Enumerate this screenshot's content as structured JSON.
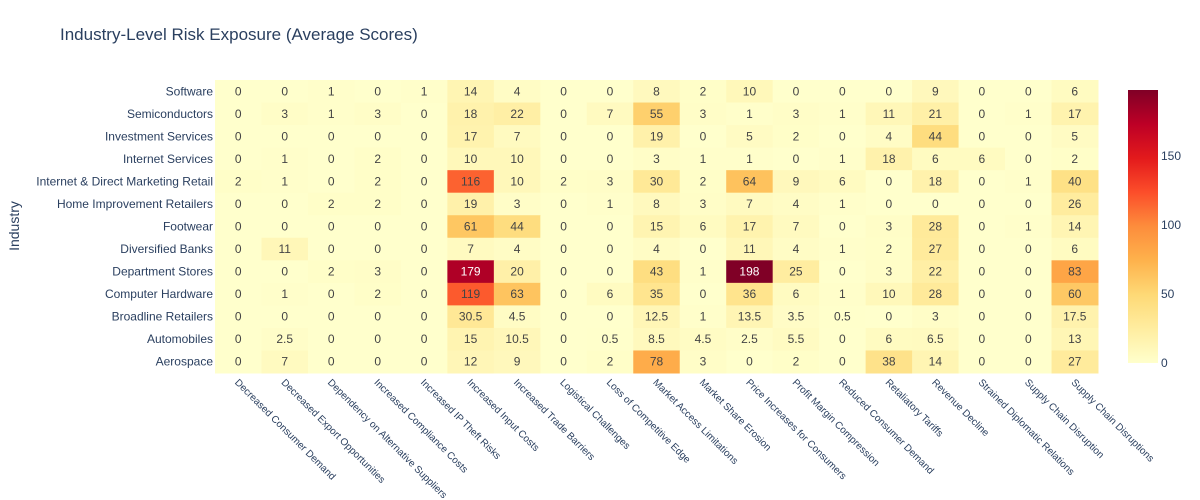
{
  "chart_data": {
    "type": "heatmap",
    "title": "Industry-Level Risk Exposure (Average Scores)",
    "xlabel": "",
    "ylabel": "Industry",
    "x": [
      "Decreased Consumer Demand",
      "Decreased Export Opportunities",
      "Dependency on Alternative Suppliers",
      "Increased Compliance Costs",
      "Increased IP Theft Risks",
      "Increased Input Costs",
      "Increased Trade Barriers",
      "Logistical Challenges",
      "Loss of Competitive Edge",
      "Market Access Limitations",
      "Market Share Erosion",
      "Price Increases for Consumers",
      "Profit Margin Compression",
      "Reduced Consumer Demand",
      "Retaliatory Tariffs",
      "Revenue Decline",
      "Strained Diplomatic Relations",
      "Supply Chain Disruption",
      "Supply Chain Disruptions"
    ],
    "y": [
      "Software",
      "Semiconductors",
      "Investment Services",
      "Internet Services",
      "Internet & Direct Marketing Retail",
      "Home Improvement Retailers",
      "Footwear",
      "Diversified Banks",
      "Department Stores",
      "Computer Hardware",
      "Broadline Retailers",
      "Automobiles",
      "Aerospace"
    ],
    "z": [
      [
        0,
        0,
        1,
        0,
        1,
        14,
        4,
        0,
        0,
        8,
        2,
        10,
        0,
        0,
        0,
        9,
        0,
        0,
        6
      ],
      [
        0,
        3,
        1,
        3,
        0,
        18,
        22,
        0,
        7,
        55,
        3,
        1,
        3,
        1,
        11,
        21,
        0,
        1,
        17
      ],
      [
        0,
        0,
        0,
        0,
        0,
        17,
        7,
        0,
        0,
        19,
        0,
        5,
        2,
        0,
        4,
        44,
        0,
        0,
        5
      ],
      [
        0,
        1,
        0,
        2,
        0,
        10,
        10,
        0,
        0,
        3,
        1,
        1,
        0,
        1,
        18,
        6,
        6,
        0,
        2
      ],
      [
        2,
        1,
        0,
        2,
        0,
        116,
        10,
        2,
        3,
        30,
        2,
        64,
        9,
        6,
        0,
        18,
        0,
        1,
        40
      ],
      [
        0,
        0,
        2,
        2,
        0,
        19,
        3,
        0,
        1,
        8,
        3,
        7,
        4,
        1,
        0,
        0,
        0,
        0,
        26
      ],
      [
        0,
        0,
        0,
        0,
        0,
        61,
        44,
        0,
        0,
        15,
        6,
        17,
        7,
        0,
        3,
        28,
        0,
        1,
        14
      ],
      [
        0,
        11,
        0,
        0,
        0,
        7,
        4,
        0,
        0,
        4,
        0,
        11,
        4,
        1,
        2,
        27,
        0,
        0,
        6
      ],
      [
        0,
        0,
        2,
        3,
        0,
        179,
        20,
        0,
        0,
        43,
        1,
        198,
        25,
        0,
        3,
        22,
        0,
        0,
        83
      ],
      [
        0,
        1,
        0,
        2,
        0,
        119,
        63,
        0,
        6,
        35,
        0,
        36,
        6,
        1,
        10,
        28,
        0,
        0,
        60
      ],
      [
        0,
        0,
        0,
        0,
        0,
        30.5,
        4.5,
        0,
        0,
        12.5,
        1,
        13.5,
        3.5,
        0.5,
        0,
        3,
        0,
        0,
        17.5
      ],
      [
        0,
        2.5,
        0,
        0,
        0,
        15,
        10.5,
        0,
        0.5,
        8.5,
        4.5,
        2.5,
        5.5,
        0,
        6,
        6.5,
        0,
        0,
        13
      ],
      [
        0,
        7,
        0,
        0,
        0,
        12,
        9,
        0,
        2,
        78,
        3,
        0,
        2,
        0,
        38,
        14,
        0,
        0,
        27
      ]
    ],
    "zrange": [
      0,
      198
    ],
    "colorscale": "YlOrRd",
    "colorbar": {
      "ticks": [
        0,
        50,
        100,
        150
      ],
      "placement": "right"
    },
    "show_cell_labels": true,
    "grid": false
  }
}
